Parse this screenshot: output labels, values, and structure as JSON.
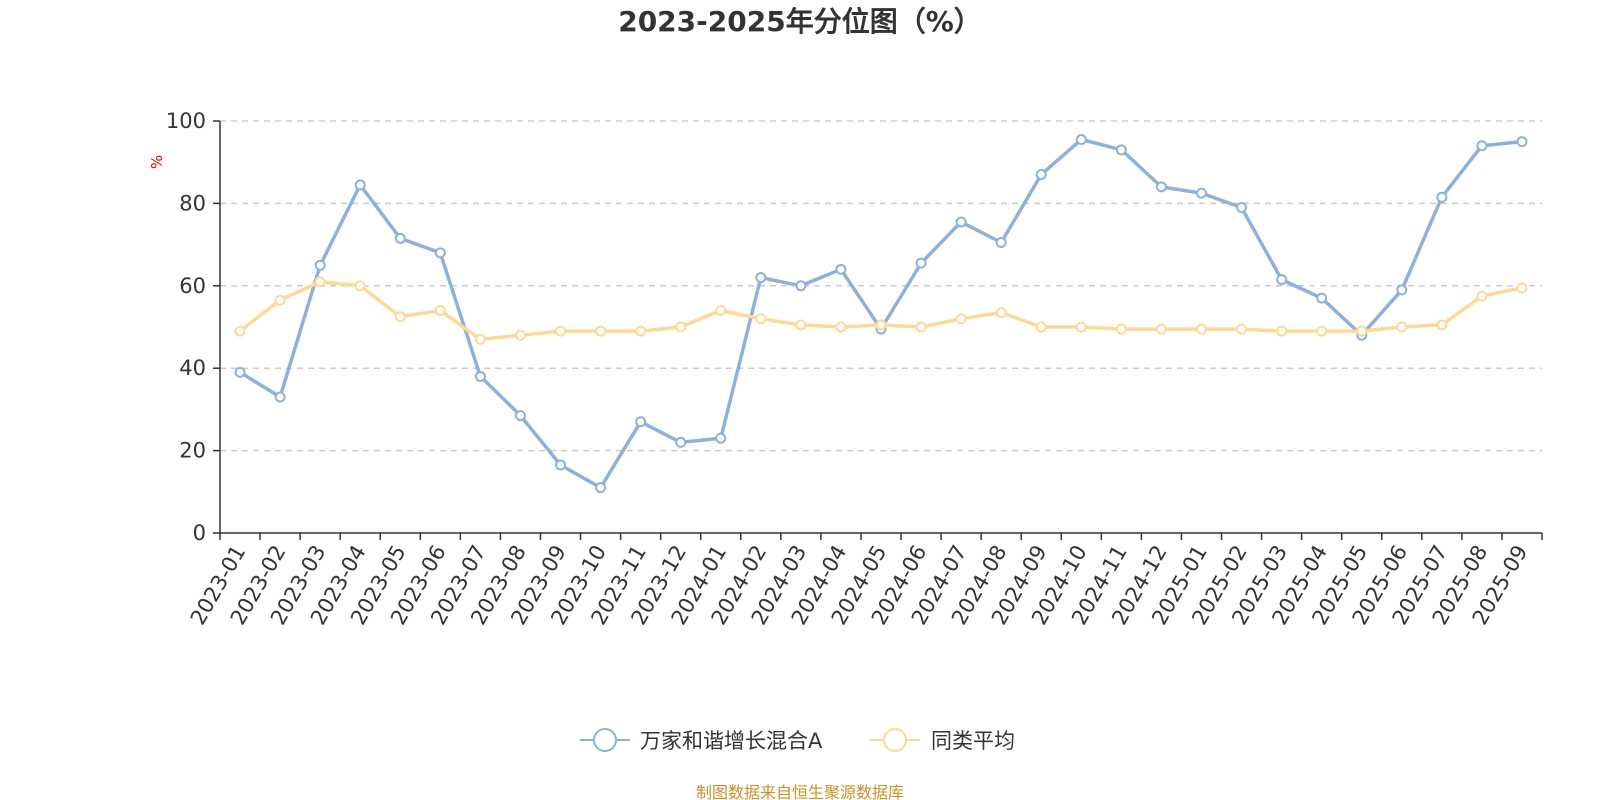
{
  "chart_data": {
    "type": "line",
    "title": "2023-2025年分位图（%）",
    "ylabel": "%",
    "xlabel": "",
    "ylim": [
      0,
      100
    ],
    "yticks": [
      0,
      20,
      40,
      60,
      80,
      100
    ],
    "grid": true,
    "legend_position": "bottom",
    "categories": [
      "2023-01",
      "2023-02",
      "2023-03",
      "2023-04",
      "2023-05",
      "2023-06",
      "2023-07",
      "2023-08",
      "2023-09",
      "2023-10",
      "2023-11",
      "2023-12",
      "2024-01",
      "2024-02",
      "2024-03",
      "2024-04",
      "2024-05",
      "2024-06",
      "2024-07",
      "2024-08",
      "2024-09",
      "2024-10",
      "2024-11",
      "2024-12",
      "2025-01",
      "2025-02",
      "2025-03",
      "2025-04",
      "2025-05",
      "2025-06",
      "2025-07",
      "2025-08",
      "2025-09"
    ],
    "series": [
      {
        "name": "万家和谐增长混合A",
        "color": "#8eb0da",
        "values": [
          39,
          33,
          65,
          84.5,
          71.5,
          68,
          38,
          28.5,
          16.5,
          11,
          27,
          22,
          23,
          62,
          60,
          64,
          49.5,
          65.5,
          75.5,
          70.5,
          87,
          95.5,
          93,
          84,
          82.5,
          79,
          61.5,
          57,
          48,
          59,
          81.5,
          94,
          95
        ]
      },
      {
        "name": "同类平均",
        "color": "#fcd997",
        "values": [
          49,
          56.5,
          61,
          60,
          52.5,
          54,
          47,
          48,
          49,
          49,
          49,
          50,
          54,
          52,
          50.5,
          50,
          50.5,
          50,
          52,
          53.5,
          50,
          50,
          49.5,
          49.5,
          49.5,
          49.5,
          49,
          49,
          49,
          50,
          50.5,
          57.5,
          59.5
        ]
      }
    ]
  },
  "source_text": "制图数据来自恒生聚源数据库"
}
